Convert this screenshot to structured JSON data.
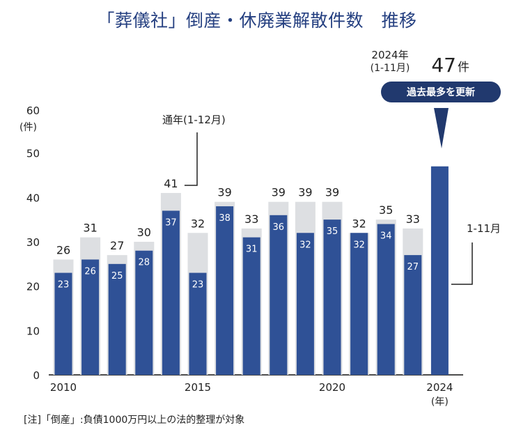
{
  "title": "「葬儀社」倒産・休廃業解散件数　推移",
  "note": "[注]「倒産」:負債1000万円以上の法的整理が対象",
  "colors": {
    "fullYear": "#dddfe2",
    "partial": "#2f5196",
    "title": "#243f80",
    "axis": "#111111"
  },
  "chart_data": {
    "type": "bar",
    "categories": [
      "2010",
      "2011",
      "2012",
      "2013",
      "2014",
      "2015",
      "2016",
      "2017",
      "2018",
      "2019",
      "2020",
      "2021",
      "2022",
      "2023",
      "2024"
    ],
    "x_tick_labels": [
      "2010",
      "2015",
      "2020",
      "2024"
    ],
    "x_tick_positions": [
      0,
      5,
      10,
      14
    ],
    "x_unit": "(年)",
    "series": [
      {
        "name": "通年(1-12月)",
        "values": [
          26,
          31,
          27,
          30,
          41,
          32,
          39,
          33,
          39,
          39,
          39,
          32,
          35,
          33,
          null
        ]
      },
      {
        "name": "1-11月",
        "values": [
          23,
          26,
          25,
          28,
          37,
          23,
          38,
          31,
          36,
          32,
          35,
          32,
          34,
          27,
          47
        ]
      }
    ],
    "y_ticks": [
      0,
      10,
      20,
      30,
      40,
      50,
      60
    ],
    "ylim": [
      0,
      60
    ],
    "y_unit": "(件)",
    "annotations": {
      "full_year_label": "通年(1-12月)",
      "partial_label": "1-11月",
      "highlight_year": "2024年",
      "highlight_period": "(1-11月)",
      "highlight_value": "47",
      "highlight_unit": "件",
      "badge": "過去最多を更新"
    }
  }
}
